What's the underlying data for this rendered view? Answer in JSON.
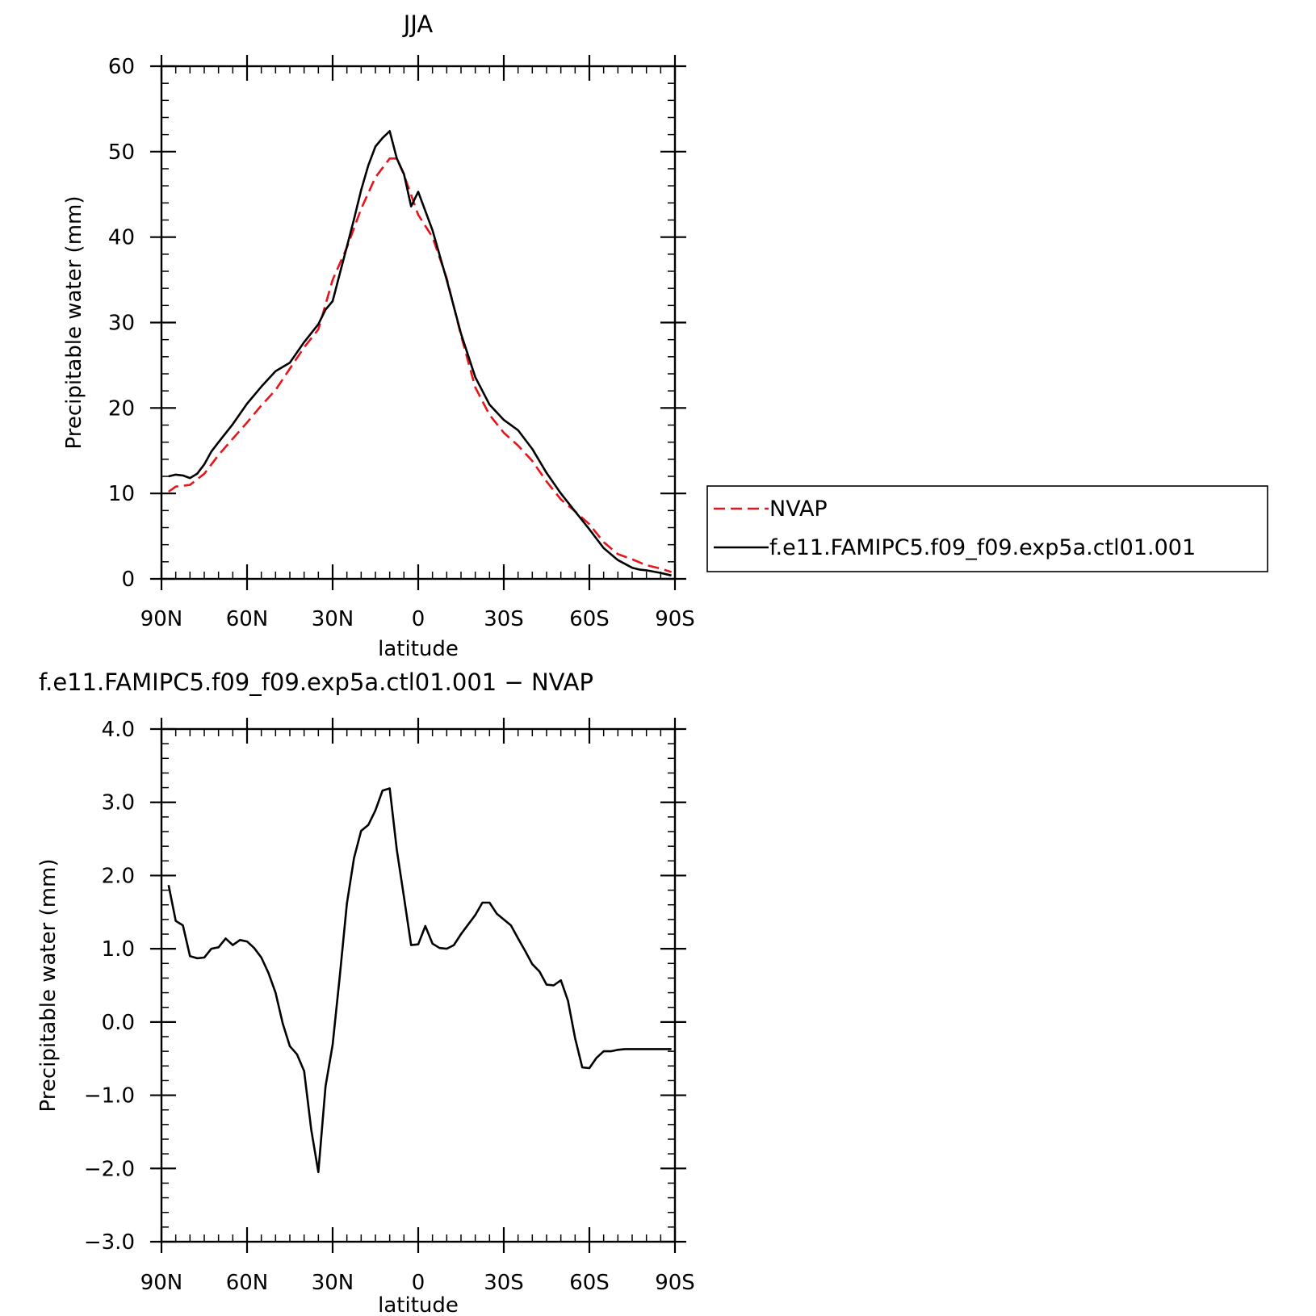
{
  "chart_data": [
    {
      "type": "line",
      "title": "JJA",
      "xlabel": "latitude",
      "ylabel": "Precipitable water (mm)",
      "xlim": [
        -90,
        90
      ],
      "ylim": [
        0,
        60
      ],
      "xticks": [
        {
          "value": -90,
          "label": "90N"
        },
        {
          "value": -60,
          "label": "60N"
        },
        {
          "value": -30,
          "label": "30N"
        },
        {
          "value": 0,
          "label": "0"
        },
        {
          "value": 30,
          "label": "30S"
        },
        {
          "value": 60,
          "label": "60S"
        },
        {
          "value": 90,
          "label": "90S"
        }
      ],
      "yticks": [
        {
          "value": 0,
          "label": "0"
        },
        {
          "value": 10,
          "label": "10"
        },
        {
          "value": 20,
          "label": "20"
        },
        {
          "value": 30,
          "label": "30"
        },
        {
          "value": 40,
          "label": "40"
        },
        {
          "value": 50,
          "label": "50"
        },
        {
          "value": 60,
          "label": "60"
        }
      ],
      "legend_position": "right",
      "series": [
        {
          "name": "NVAP",
          "color": "#e8141b",
          "dash": true,
          "x": [
            -87.5,
            -85,
            -80,
            -75,
            -70,
            -65,
            -60,
            -55,
            -50,
            -45,
            -40,
            -35,
            -30,
            -25,
            -20,
            -15,
            -10,
            -7.5,
            -5,
            0,
            5,
            10,
            15,
            20,
            25,
            30,
            35,
            40,
            45,
            50,
            55,
            60,
            65,
            70,
            75,
            80,
            85,
            88.75
          ],
          "y": [
            10.2,
            10.8,
            11.0,
            12.3,
            14.5,
            16.4,
            18.3,
            20.3,
            22.1,
            24.6,
            27.1,
            29.2,
            35.0,
            38.8,
            43.3,
            47.0,
            49.2,
            49.2,
            47.3,
            42.6,
            40.0,
            35.2,
            28.5,
            22.4,
            19.2,
            17.1,
            15.6,
            13.8,
            11.4,
            9.3,
            7.9,
            6.4,
            4.3,
            2.9,
            2.3,
            1.6,
            1.2,
            0.8
          ]
        },
        {
          "name": "f.e11.FAMIPC5.f09_f09.exp5a.ctl01.001",
          "color": "#000000",
          "dash": false,
          "x": [
            -87.5,
            -85,
            -82.5,
            -80,
            -77.5,
            -75,
            -72.5,
            -70,
            -65,
            -60,
            -55,
            -50,
            -45,
            -40,
            -35,
            -32.5,
            -30,
            -27.5,
            -25,
            -22.5,
            -20,
            -17.5,
            -15,
            -12.5,
            -10,
            -7.5,
            -5,
            -2.5,
            0,
            5,
            10,
            15,
            20,
            25,
            30,
            35,
            40,
            45,
            50,
            55,
            60,
            65,
            70,
            75,
            77.5,
            80,
            85,
            88.75
          ],
          "y": [
            12.0,
            12.2,
            12.1,
            11.8,
            12.3,
            13.4,
            14.9,
            16.0,
            18.1,
            20.5,
            22.5,
            24.3,
            25.3,
            27.7,
            29.8,
            31.5,
            32.5,
            35.7,
            38.9,
            42.1,
            45.5,
            48.4,
            50.6,
            51.6,
            52.4,
            49.2,
            47.4,
            43.6,
            45.3,
            40.8,
            35.0,
            28.7,
            23.6,
            20.4,
            18.6,
            17.4,
            15.2,
            12.4,
            10.0,
            7.9,
            5.8,
            3.6,
            2.2,
            1.3,
            1.1,
            1.0,
            0.7,
            0.4
          ]
        }
      ]
    },
    {
      "type": "line",
      "title": "f.e11.FAMIPC5.f09_f09.exp5a.ctl01.001 − NVAP",
      "xlabel": "latitude",
      "ylabel": "Precipitable water (mm)",
      "xlim": [
        -90,
        90
      ],
      "ylim": [
        -3,
        4
      ],
      "xticks": [
        {
          "value": -90,
          "label": "90N"
        },
        {
          "value": -60,
          "label": "60N"
        },
        {
          "value": -30,
          "label": "30N"
        },
        {
          "value": 0,
          "label": "0"
        },
        {
          "value": 30,
          "label": "30S"
        },
        {
          "value": 60,
          "label": "60S"
        },
        {
          "value": 90,
          "label": "90S"
        }
      ],
      "yticks": [
        {
          "value": -3,
          "label": "−3.0"
        },
        {
          "value": -2,
          "label": "−2.0"
        },
        {
          "value": -1,
          "label": "−1.0"
        },
        {
          "value": 0,
          "label": "0.0"
        },
        {
          "value": 1,
          "label": "1.0"
        },
        {
          "value": 2,
          "label": "2.0"
        },
        {
          "value": 3,
          "label": "3.0"
        },
        {
          "value": 4,
          "label": "4.0"
        }
      ],
      "series": [
        {
          "name": "",
          "color": "#000000",
          "dash": false,
          "x": [
            -87.5,
            -85,
            -82.5,
            -80,
            -77.5,
            -75,
            -72.5,
            -70,
            -67.5,
            -65,
            -62.5,
            -60,
            -57.5,
            -55,
            -52.5,
            -50,
            -47.5,
            -45,
            -42.5,
            -40,
            -37.5,
            -35,
            -32.5,
            -30,
            -27.5,
            -25,
            -22.5,
            -20,
            -17.5,
            -15,
            -12.5,
            -10,
            -7.5,
            -5,
            -2.5,
            0,
            2.5,
            5,
            7.5,
            10,
            12.5,
            15,
            17.5,
            20,
            22.5,
            25,
            27.5,
            30,
            32.5,
            35,
            37.5,
            40,
            42.5,
            45,
            47.5,
            50,
            52.5,
            55,
            57.5,
            60,
            62.5,
            65,
            67.5,
            70,
            72.5,
            75,
            77.5,
            80,
            82.5,
            85,
            87.5,
            88.75
          ],
          "y": [
            1.87,
            1.38,
            1.32,
            0.9,
            0.87,
            0.88,
            1.0,
            1.02,
            1.14,
            1.05,
            1.12,
            1.1,
            1.01,
            0.88,
            0.67,
            0.4,
            -0.02,
            -0.33,
            -0.44,
            -0.67,
            -1.47,
            -2.05,
            -0.88,
            -0.31,
            0.62,
            1.62,
            2.24,
            2.61,
            2.69,
            2.89,
            3.16,
            3.19,
            2.35,
            1.71,
            1.05,
            1.06,
            1.31,
            1.07,
            1.01,
            1.0,
            1.05,
            1.2,
            1.33,
            1.46,
            1.63,
            1.63,
            1.48,
            1.4,
            1.32,
            1.14,
            0.97,
            0.79,
            0.69,
            0.51,
            0.5,
            0.57,
            0.29,
            -0.22,
            -0.62,
            -0.63,
            -0.49,
            -0.4,
            -0.4,
            -0.38,
            -0.37,
            -0.37,
            -0.37,
            -0.37,
            -0.37,
            -0.37,
            -0.37,
            -0.37
          ]
        }
      ]
    }
  ]
}
